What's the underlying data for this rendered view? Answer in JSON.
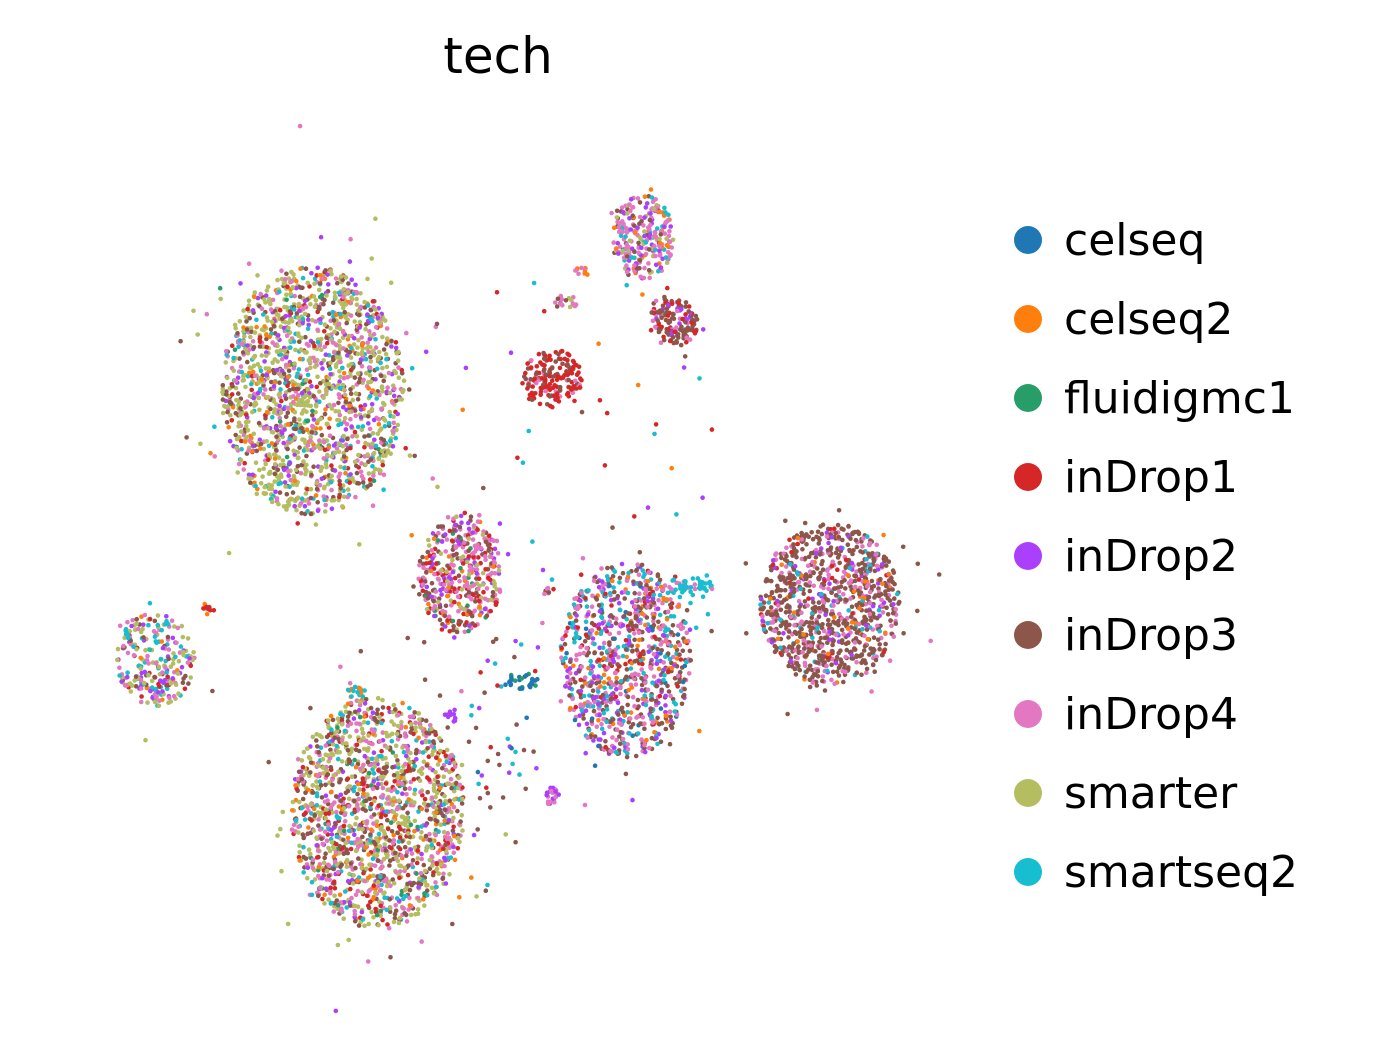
{
  "chart_data": {
    "type": "scatter",
    "title": "tech",
    "xlabel": "",
    "ylabel": "",
    "axes_visible": false,
    "grid": false,
    "legend_position": "right",
    "xlim": [
      0,
      100
    ],
    "ylim": [
      0,
      100
    ],
    "series": [
      {
        "name": "celseq",
        "color": "#1f77b4",
        "weight": 0.03
      },
      {
        "name": "celseq2",
        "color": "#ff7f0e",
        "weight": 0.07
      },
      {
        "name": "fluidigmc1",
        "color": "#279e68",
        "weight": 0.04
      },
      {
        "name": "inDrop1",
        "color": "#d62728",
        "weight": 0.1
      },
      {
        "name": "inDrop2",
        "color": "#aa40fc",
        "weight": 0.1
      },
      {
        "name": "inDrop3",
        "color": "#8c564b",
        "weight": 0.25
      },
      {
        "name": "inDrop4",
        "color": "#e377c2",
        "weight": 0.17
      },
      {
        "name": "smarter",
        "color": "#b5bd61",
        "weight": 0.12
      },
      {
        "name": "smartseq2",
        "color": "#17becf",
        "weight": 0.12
      }
    ],
    "clusters": [
      {
        "cx": 29.0,
        "cy": 70.0,
        "rx": 10.5,
        "ry": 14.5,
        "n": 1700,
        "mix": {
          "smarter": 0.4,
          "inDrop4": 0.15,
          "inDrop3": 0.15,
          "inDrop2": 0.1,
          "smartseq2": 0.08,
          "celseq2": 0.06,
          "inDrop1": 0.04,
          "fluidigmc1": 0.02
        }
      },
      {
        "cx": 36.5,
        "cy": 20.5,
        "rx": 10.0,
        "ry": 13.5,
        "n": 1600,
        "mix": {
          "smarter": 0.3,
          "inDrop3": 0.22,
          "inDrop4": 0.18,
          "inDrop1": 0.1,
          "smartseq2": 0.07,
          "celseq2": 0.06,
          "inDrop2": 0.05,
          "fluidigmc1": 0.02
        }
      },
      {
        "cx": 88.5,
        "cy": 45.0,
        "rx": 8.0,
        "ry": 9.5,
        "n": 1000,
        "mix": {
          "inDrop3": 0.6,
          "inDrop4": 0.2,
          "inDrop2": 0.08,
          "smartseq2": 0.05,
          "celseq2": 0.04,
          "inDrop1": 0.03
        }
      },
      {
        "cx": 65.0,
        "cy": 38.5,
        "rx": 7.5,
        "ry": 11.5,
        "n": 950,
        "mix": {
          "inDrop3": 0.3,
          "inDrop4": 0.25,
          "inDrop2": 0.15,
          "smartseq2": 0.15,
          "inDrop1": 0.07,
          "celseq2": 0.05,
          "celseq": 0.03
        }
      },
      {
        "cx": 46.0,
        "cy": 48.5,
        "rx": 4.8,
        "ry": 7.0,
        "n": 450,
        "mix": {
          "inDrop4": 0.3,
          "inDrop3": 0.25,
          "inDrop1": 0.15,
          "smarter": 0.1,
          "inDrop2": 0.1,
          "celseq2": 0.05,
          "fluidigmc1": 0.05
        }
      },
      {
        "cx": 67.0,
        "cy": 88.0,
        "rx": 3.5,
        "ry": 5.0,
        "n": 260,
        "mix": {
          "inDrop4": 0.4,
          "inDrop3": 0.15,
          "inDrop2": 0.15,
          "celseq2": 0.1,
          "smarter": 0.1,
          "smartseq2": 0.1
        }
      },
      {
        "cx": 70.5,
        "cy": 78.0,
        "rx": 2.8,
        "ry": 2.8,
        "n": 150,
        "mix": {
          "inDrop3": 0.6,
          "inDrop1": 0.2,
          "inDrop2": 0.1,
          "inDrop4": 0.1
        }
      },
      {
        "cx": 56.5,
        "cy": 71.5,
        "rx": 3.5,
        "ry": 3.6,
        "n": 170,
        "mix": {
          "inDrop1": 0.6,
          "inDrop3": 0.3,
          "inDrop4": 0.1
        }
      },
      {
        "cx": 11.0,
        "cy": 38.5,
        "rx": 4.5,
        "ry": 5.5,
        "n": 260,
        "mix": {
          "smarter": 0.25,
          "inDrop4": 0.2,
          "smartseq2": 0.2,
          "inDrop3": 0.15,
          "inDrop2": 0.1,
          "celseq2": 0.05,
          "inDrop1": 0.05
        }
      },
      {
        "cx": 72.5,
        "cy": 47.0,
        "rx": 2.5,
        "ry": 1.5,
        "n": 50,
        "mix": {
          "smartseq2": 0.8,
          "inDrop4": 0.2
        }
      },
      {
        "cx": 53.0,
        "cy": 36.0,
        "rx": 2.0,
        "ry": 1.0,
        "n": 30,
        "mix": {
          "celseq": 0.7,
          "fluidigmc1": 0.2,
          "smartseq2": 0.1
        }
      },
      {
        "cx": 56.5,
        "cy": 22.5,
        "rx": 0.7,
        "ry": 1.2,
        "n": 25,
        "mix": {
          "inDrop2": 0.5,
          "inDrop4": 0.5
        }
      },
      {
        "cx": 34.0,
        "cy": 34.5,
        "rx": 1.2,
        "ry": 1.5,
        "n": 22,
        "mix": {
          "smartseq2": 0.6,
          "celseq2": 0.2,
          "inDrop4": 0.2
        }
      },
      {
        "cx": 45.0,
        "cy": 32.0,
        "rx": 0.8,
        "ry": 0.8,
        "n": 10,
        "mix": {
          "inDrop2": 0.9,
          "inDrop4": 0.1
        }
      },
      {
        "cx": 58.0,
        "cy": 80.5,
        "rx": 1.8,
        "ry": 0.8,
        "n": 18,
        "mix": {
          "inDrop3": 0.4,
          "inDrop4": 0.3,
          "smarter": 0.3
        }
      },
      {
        "cx": 60.0,
        "cy": 84.0,
        "rx": 0.8,
        "ry": 0.6,
        "n": 10,
        "mix": {
          "inDrop4": 0.5,
          "celseq2": 0.5
        }
      },
      {
        "cx": 17.0,
        "cy": 44.5,
        "rx": 0.8,
        "ry": 0.7,
        "n": 10,
        "mix": {
          "inDrop1": 0.5,
          "celseq2": 0.3,
          "smartseq2": 0.2
        }
      },
      {
        "cx": 56.0,
        "cy": 46.5,
        "rx": 0.4,
        "ry": 0.5,
        "n": 8,
        "mix": {
          "inDrop3": 0.5,
          "inDrop4": 0.5
        }
      },
      {
        "cx": 51.0,
        "cy": 30.0,
        "rx": 4.5,
        "ry": 10.0,
        "n": 40,
        "mix": {
          "inDrop1": 0.3,
          "inDrop3": 0.25,
          "celseq": 0.15,
          "inDrop2": 0.15,
          "smartseq2": 0.15
        }
      },
      {
        "cx": 58.0,
        "cy": 61.0,
        "rx": 18.0,
        "ry": 24.0,
        "n": 35,
        "mix": {
          "inDrop1": 0.25,
          "celseq2": 0.25,
          "smartseq2": 0.25,
          "inDrop2": 0.25
        }
      }
    ]
  }
}
